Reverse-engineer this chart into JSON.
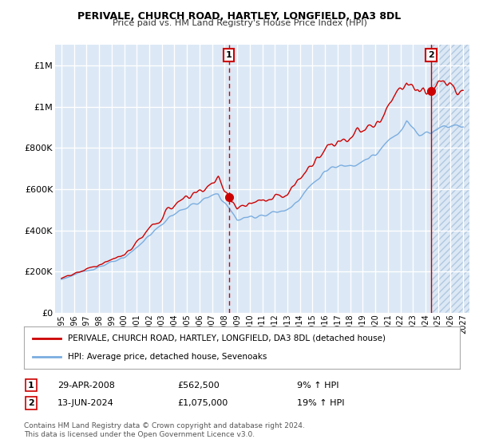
{
  "title": "PERIVALE, CHURCH ROAD, HARTLEY, LONGFIELD, DA3 8DL",
  "subtitle": "Price paid vs. HM Land Registry's House Price Index (HPI)",
  "ylim": [
    0,
    1300000
  ],
  "xlim_start": 1994.5,
  "xlim_end": 2027.5,
  "sale1_x": 2008.33,
  "sale1_y": 562500,
  "sale2_x": 2024.45,
  "sale2_y": 1075000,
  "annotation1": {
    "label": "1",
    "date": "29-APR-2008",
    "price": "£562,500",
    "hpi": "9% ↑ HPI"
  },
  "annotation2": {
    "label": "2",
    "date": "13-JUN-2024",
    "price": "£1,075,000",
    "hpi": "19% ↑ HPI"
  },
  "legend_line1": "PERIVALE, CHURCH ROAD, HARTLEY, LONGFIELD, DA3 8DL (detached house)",
  "legend_line2": "HPI: Average price, detached house, Sevenoaks",
  "footer": "Contains HM Land Registry data © Crown copyright and database right 2024.\nThis data is licensed under the Open Government Licence v3.0.",
  "line_color_red": "#cc0000",
  "line_color_blue": "#7aade0",
  "bg_color": "#dce8f5",
  "grid_color": "#ffffff",
  "annotation_box_color": "#cc0000",
  "hatch_color": "#c0d0e0"
}
